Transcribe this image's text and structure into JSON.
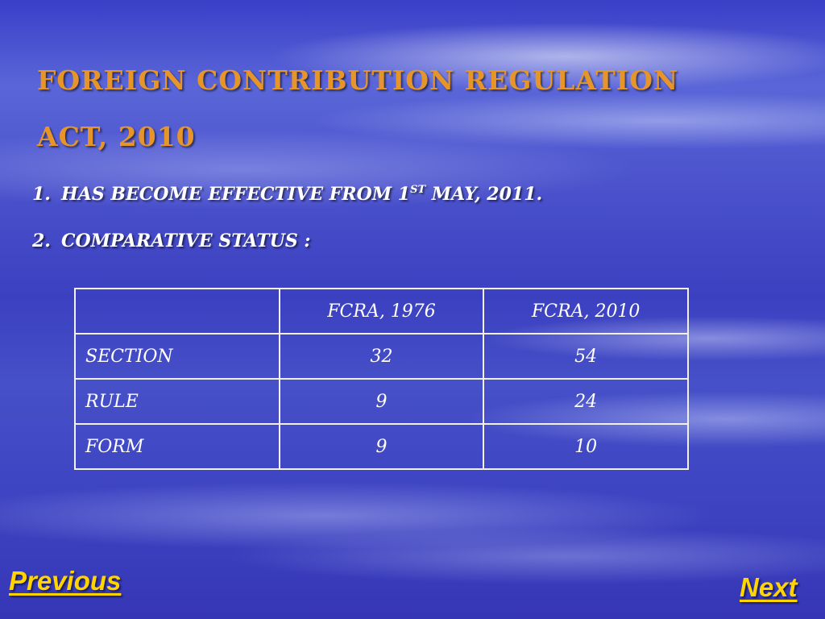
{
  "slide": {
    "title_line1": "FOREIGN CONTRIBUTION REGULATION",
    "title_line2": "ACT, 2010",
    "points": [
      {
        "number": "1.",
        "text_before": "HAS BECOME EFFECTIVE FROM 1",
        "superscript": "ST",
        "text_after": " MAY, 2011."
      },
      {
        "number": "2.",
        "text": "COMPARATIVE STATUS :"
      }
    ],
    "table": {
      "headers": [
        "",
        "FCRA, 1976",
        "FCRA, 2010"
      ],
      "rows": [
        [
          "SECTION",
          "32",
          "54"
        ],
        [
          "RULE",
          "9",
          "24"
        ],
        [
          "FORM",
          "9",
          "10"
        ]
      ]
    }
  },
  "nav": {
    "previous_label": "Previous",
    "next_label": "Next"
  },
  "colors": {
    "title": "#e6952a",
    "nav_link": "#ffd400",
    "text": "#ffffff"
  }
}
